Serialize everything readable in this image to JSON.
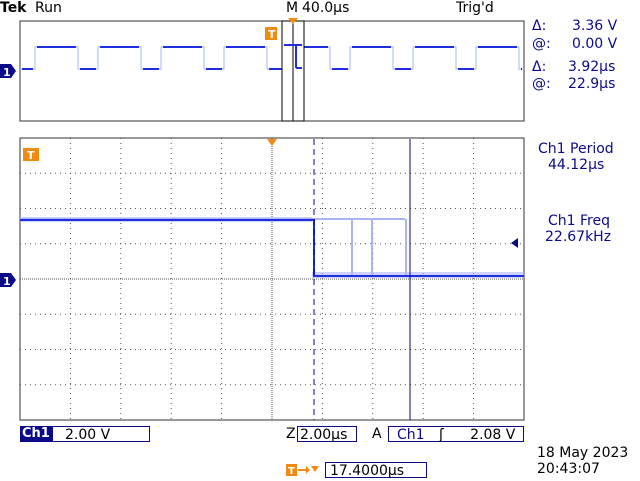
{
  "header": {
    "brand": "Tek",
    "acq_state": "Run",
    "timebase_label": "M",
    "timebase_value": "40.0µs",
    "trigger_state": "Trig'd"
  },
  "cursors": {
    "delta_v_symbol": "Δ:",
    "delta_v": "3.36 V",
    "at_v_symbol": "@:",
    "at_v": "0.00 V",
    "delta_t_symbol": "Δ:",
    "delta_t": "3.92µs",
    "at_t_symbol": "@:",
    "at_t": "22.9µs"
  },
  "measurements": [
    {
      "label": "Ch1 Period",
      "value": "44.12µs"
    },
    {
      "label": "Ch1 Freq",
      "value": "22.67kHz"
    }
  ],
  "markers": {
    "trigger": "T",
    "channel": "1"
  },
  "bottom": {
    "channel": "Ch1",
    "volts_div": "2.00 V",
    "zoom_label": "Z",
    "zoom_value": "2.00µs",
    "trig_source_label": "A",
    "trig_channel": "Ch1",
    "trig_slope": "ʃ",
    "trig_level": "2.08 V",
    "date": "18 May 2023",
    "time": "20:43:07",
    "trig_pos_value": "17.4000µs"
  },
  "colors": {
    "trace": "#1f2fe0",
    "trace_faint": "#aab4f5",
    "ink": "#0a0a8a",
    "marker": "#f08a10"
  }
}
